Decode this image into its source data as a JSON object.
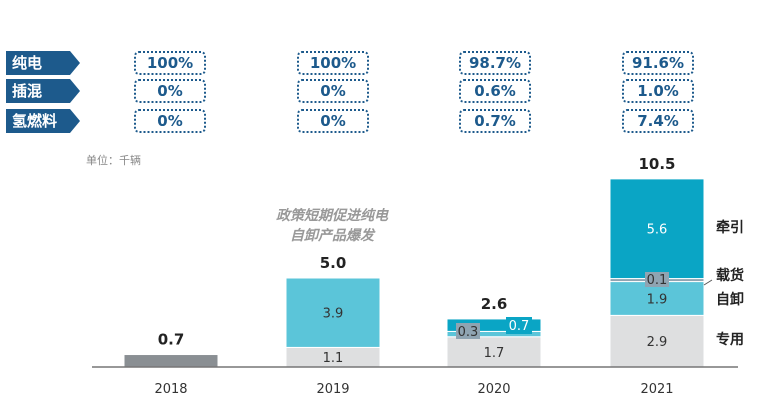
{
  "share_table": {
    "rows": [
      {
        "label": "纯电",
        "values": [
          "100%",
          "100%",
          "98.7%",
          "91.6%"
        ]
      },
      {
        "label": "插混",
        "values": [
          "0%",
          "0%",
          "0.6%",
          "1.0%"
        ]
      },
      {
        "label": "氢燃料",
        "values": [
          "0%",
          "0%",
          "0.7%",
          "7.4%"
        ]
      }
    ]
  },
  "chart_data": {
    "type": "bar",
    "stacked": true,
    "unit_label": "单位：千辆",
    "annotation": [
      "政策短期促进纯电",
      "自卸产品爆发"
    ],
    "categories": [
      "2018",
      "2019",
      "2020",
      "2021"
    ],
    "totals": [
      "0.7",
      "5.0",
      "2.6",
      "10.5"
    ],
    "series": [
      {
        "name": "专用",
        "values": [
          0.7,
          1.1,
          1.7,
          2.9
        ],
        "color": "#dedfe0"
      },
      {
        "name": "自卸",
        "values": [
          0,
          3.9,
          0.3,
          1.9
        ],
        "color": "#5bc5d9"
      },
      {
        "name": "载货",
        "values": [
          0,
          0,
          0,
          0.1
        ],
        "color": "#8fa4b2"
      },
      {
        "name": "牵引",
        "values": [
          0,
          0,
          0.7,
          5.6
        ],
        "color": "#0aa5c5"
      }
    ],
    "bar_color_2018": "#8a8f93",
    "legend": [
      "牵引",
      "载货",
      "自卸",
      "专用"
    ],
    "legend_placement": "right",
    "grid": false
  }
}
